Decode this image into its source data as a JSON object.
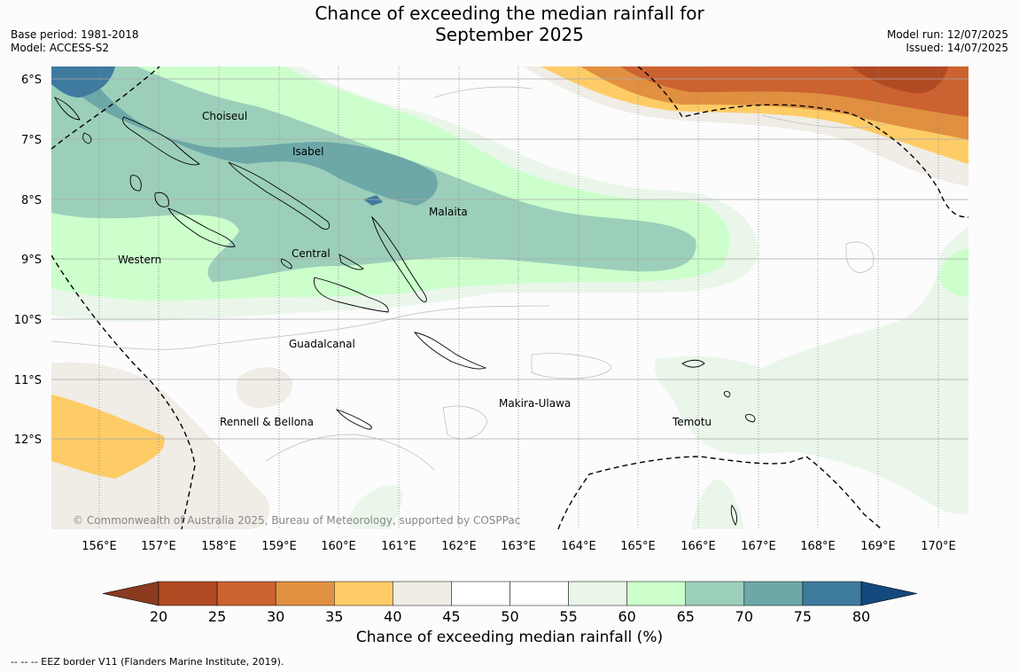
{
  "header": {
    "title_line1": "Chance of exceeding the median rainfall for",
    "title_line2": "September 2025",
    "base_period": "Base period: 1981-2018",
    "model": "Model: ACCESS-S2",
    "model_run": "Model run: 12/07/2025",
    "issued": "Issued: 14/07/2025"
  },
  "map": {
    "copyright": "© Commonwealth of Australia 2025, Bureau of Meteorology, supported by COSPPac",
    "lon_ticks": [
      "156°E",
      "157°E",
      "158°E",
      "159°E",
      "160°E",
      "161°E",
      "162°E",
      "163°E",
      "164°E",
      "165°E",
      "166°E",
      "167°E",
      "168°E",
      "169°E",
      "170°E"
    ],
    "lat_ticks": [
      "6°S",
      "7°S",
      "8°S",
      "9°S",
      "10°S",
      "11°S",
      "12°S"
    ],
    "region_labels": [
      {
        "name": "Choiseul"
      },
      {
        "name": "Isabel"
      },
      {
        "name": "Malaita"
      },
      {
        "name": "Western"
      },
      {
        "name": "Central"
      },
      {
        "name": "Guadalcanal"
      },
      {
        "name": "Makira-Ulawa"
      },
      {
        "name": "Rennell & Bellona"
      },
      {
        "name": "Temotu"
      }
    ]
  },
  "legend": {
    "title": "Chance of exceeding median rainfall (%)",
    "ticks": [
      "20",
      "25",
      "30",
      "35",
      "40",
      "45",
      "50",
      "55",
      "60",
      "65",
      "70",
      "75",
      "80"
    ],
    "colors": [
      "#b04a22",
      "#cc6230",
      "#e09040",
      "#fecc66",
      "#f0ece6",
      "#ffffff",
      "#ffffff",
      "#eaf6ea",
      "#ccffcc",
      "#9ccfba",
      "#6ea7a8",
      "#3f7a9f"
    ],
    "under_color": "#8b3a1f",
    "over_color": "#14497d"
  },
  "footnote": "--  --  -- EEZ border V11 (Flanders Marine Institute, 2019)."
}
